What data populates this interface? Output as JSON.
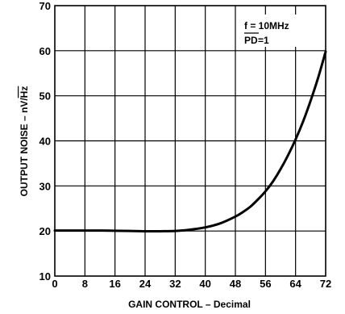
{
  "chart_data": {
    "type": "line",
    "xlabel": "GAIN CONTROL – Decimal",
    "ylabel_main": "OUTPUT NOISE – nV/",
    "ylabel_unit": "Hz",
    "xlim": [
      0,
      72
    ],
    "ylim": [
      10,
      70
    ],
    "x_ticks": [
      "0",
      "8",
      "16",
      "24",
      "32",
      "40",
      "48",
      "56",
      "64",
      "72"
    ],
    "y_ticks": [
      "10",
      "20",
      "30",
      "40",
      "50",
      "60",
      "70"
    ],
    "grid": true,
    "annotations": {
      "line1": "f = 10MHz",
      "line2_overbar": "PD",
      "line2_rest": " =1"
    },
    "series": [
      {
        "x": [
          0,
          4,
          8,
          12,
          16,
          20,
          24,
          28,
          32,
          36,
          40,
          44,
          48,
          50,
          52,
          54,
          56,
          58,
          60,
          62,
          64,
          66,
          68,
          70,
          72
        ],
        "y": [
          20.1,
          20.1,
          20.1,
          20.1,
          20.05,
          20.0,
          19.95,
          19.95,
          20.0,
          20.3,
          20.8,
          21.7,
          23.2,
          24.2,
          25.4,
          27.0,
          28.8,
          31.0,
          33.7,
          36.8,
          40.3,
          44.3,
          48.9,
          54.0,
          59.8
        ]
      }
    ]
  }
}
